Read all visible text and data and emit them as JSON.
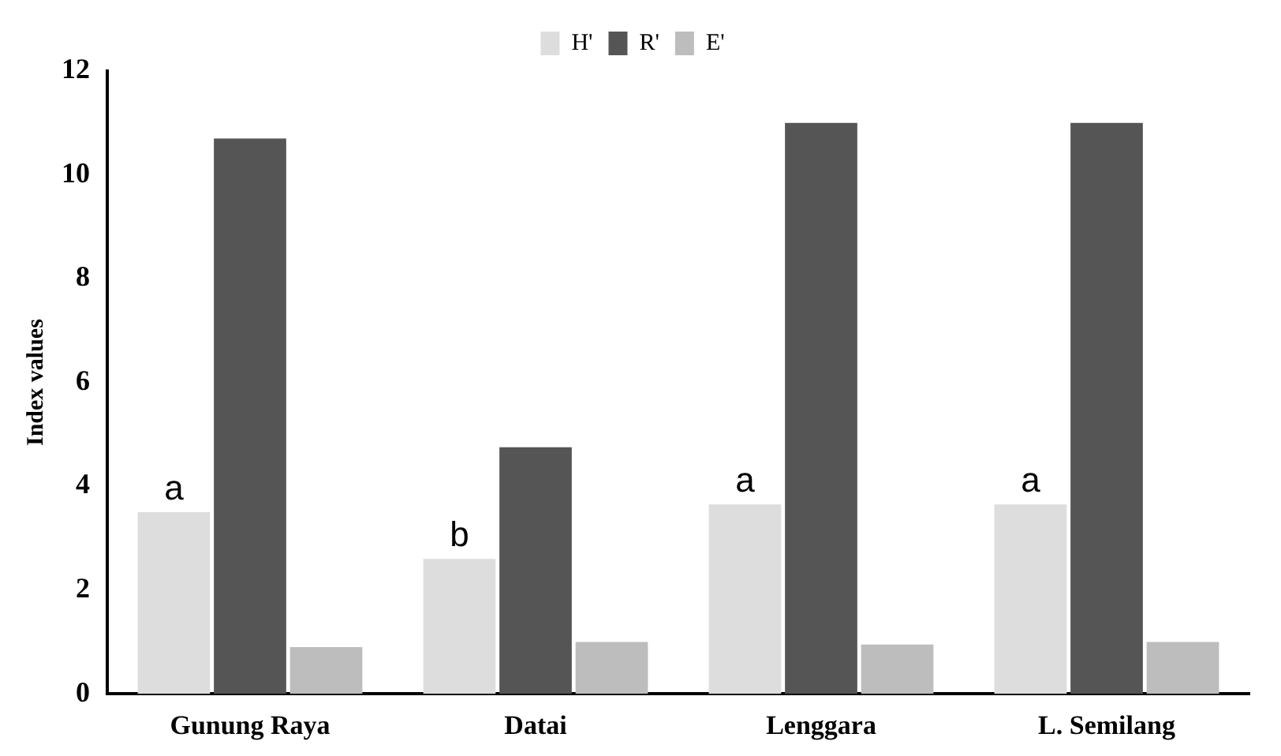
{
  "chart_data": {
    "type": "bar",
    "ylabel": "Index values",
    "categories": [
      "Gunung Raya",
      "Datai",
      "Lenggara",
      "L. Semilang"
    ],
    "series": [
      {
        "name": "H'",
        "color": "#dddddd",
        "values": [
          3.5,
          2.6,
          3.65,
          3.65
        ]
      },
      {
        "name": "R'",
        "color": "#555555",
        "values": [
          10.7,
          4.75,
          11.0,
          11.0
        ]
      },
      {
        "name": "E'",
        "color": "#bdbdbd",
        "values": [
          0.9,
          1.0,
          0.95,
          1.0
        ]
      }
    ],
    "ylim": [
      0,
      12
    ],
    "yticks": [
      0,
      2,
      4,
      6,
      8,
      10,
      12
    ],
    "grid": false,
    "legend": "top",
    "annotations": [
      "a",
      "b",
      "a",
      "a"
    ]
  }
}
